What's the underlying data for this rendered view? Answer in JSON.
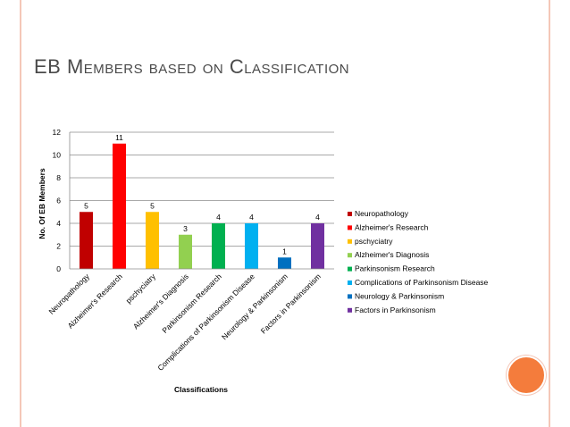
{
  "slide": {
    "title": "EB Members based on Classification"
  },
  "chart_data": {
    "type": "bar",
    "categories": [
      "Neuropathology",
      "Alzheimer's Research",
      "pschyciatry",
      "Alzheimer's Diagnosis",
      "Parkinsonism Research",
      "Complications of Parkinsonism Disease",
      "Neurology & Parkinsonism",
      "Factors in Parkinsonism"
    ],
    "values": [
      5,
      11,
      5,
      3,
      4,
      4,
      1,
      4
    ],
    "colors": [
      "#c00000",
      "#ff0000",
      "#ffc000",
      "#92d050",
      "#00b050",
      "#00b0f0",
      "#0070c0",
      "#7030a0"
    ],
    "xlabel": "Classifications",
    "ylabel": "No. Of EB Members",
    "ylim": [
      0,
      12
    ],
    "yticks": [
      0,
      2,
      4,
      6,
      8,
      10,
      12
    ],
    "grid": true,
    "legend": "right",
    "data_labels": true
  }
}
